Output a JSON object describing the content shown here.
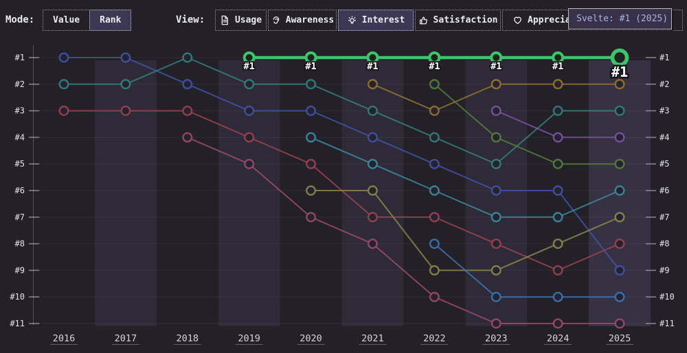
{
  "header": {
    "mode_label": "Mode:",
    "mode_buttons": [
      {
        "label": "Value",
        "selected": false
      },
      {
        "label": "Rank",
        "selected": true
      }
    ],
    "view_label": "View:",
    "view_buttons": [
      {
        "label": "Usage",
        "icon": "document-icon",
        "selected": false
      },
      {
        "label": "Awareness",
        "icon": "ear-icon",
        "selected": false
      },
      {
        "label": "Interest",
        "icon": "lightbulb-icon",
        "selected": true
      },
      {
        "label": "Satisfaction",
        "icon": "thumbs-up-icon",
        "selected": false
      },
      {
        "label": "Appreciation",
        "icon": "heart-icon",
        "selected": false
      }
    ],
    "tooltip_text": "Svelte: #1 (2025)"
  },
  "colors": {
    "background": "#232027",
    "accent_green": "#3ec56c",
    "selected_button_bg": "#3c3752",
    "tooltip_bg": "#37324a",
    "tooltip_text": "#a8b4e2"
  },
  "chart_data": {
    "type": "line",
    "subtype": "bump-rank-chart",
    "x": [
      2016,
      2017,
      2018,
      2019,
      2020,
      2021,
      2022,
      2023,
      2024,
      2025
    ],
    "x_tick_labels": [
      "2016",
      "2017",
      "2018",
      "2019",
      "2020",
      "2021",
      "2022",
      "2023",
      "2024",
      "2025"
    ],
    "y_tick_labels": [
      "#1",
      "#2",
      "#3",
      "#4",
      "#5",
      "#6",
      "#7",
      "#8",
      "#9",
      "#10",
      "#11"
    ],
    "y_axis_inverted_rank": true,
    "ylim": [
      1,
      11
    ],
    "grid": true,
    "legend": "none",
    "hover_column_index": 9,
    "highlight_point_label": "#1",
    "series": [
      {
        "id": "series-indigo",
        "color": "#4353a8",
        "highlight": false,
        "ranks": [
          1,
          1,
          2,
          3,
          3,
          4,
          5,
          6,
          6,
          9
        ]
      },
      {
        "id": "series-teal",
        "color": "#34817e",
        "highlight": false,
        "ranks": [
          2,
          2,
          1,
          2,
          2,
          3,
          4,
          5,
          3,
          3
        ]
      },
      {
        "id": "series-red",
        "color": "#9e4350",
        "highlight": false,
        "ranks": [
          3,
          3,
          3,
          4,
          5,
          7,
          7,
          8,
          9,
          8
        ]
      },
      {
        "id": "series-magenta",
        "color": "#9d4a6b",
        "highlight": false,
        "ranks": [
          null,
          null,
          4,
          5,
          7,
          8,
          10,
          11,
          11,
          11
        ]
      },
      {
        "id": "series-cyan",
        "color": "#3b8da0",
        "highlight": false,
        "ranks": [
          null,
          null,
          null,
          null,
          4,
          5,
          6,
          7,
          7,
          6
        ]
      },
      {
        "id": "series-olive",
        "color": "#8d874b",
        "highlight": false,
        "ranks": [
          null,
          null,
          null,
          null,
          6,
          6,
          9,
          9,
          8,
          7
        ]
      },
      {
        "id": "series-amber",
        "color": "#97742f",
        "highlight": false,
        "ranks": [
          null,
          null,
          null,
          null,
          null,
          2,
          3,
          2,
          2,
          2
        ]
      },
      {
        "id": "series-dark-green",
        "color": "#567f3c",
        "highlight": false,
        "ranks": [
          null,
          null,
          null,
          null,
          null,
          null,
          2,
          4,
          5,
          5
        ]
      },
      {
        "id": "series-purple",
        "color": "#7e54a4",
        "highlight": false,
        "ranks": [
          null,
          null,
          null,
          null,
          null,
          null,
          null,
          3,
          4,
          4
        ]
      },
      {
        "id": "series-light-blue",
        "color": "#3b76b5",
        "highlight": false,
        "ranks": [
          null,
          null,
          null,
          null,
          null,
          null,
          8,
          10,
          10,
          10
        ]
      },
      {
        "id": "Svelte",
        "color": "#3ec56c",
        "highlight": true,
        "ranks": [
          null,
          null,
          null,
          1,
          1,
          1,
          1,
          1,
          1,
          1
        ]
      }
    ]
  }
}
